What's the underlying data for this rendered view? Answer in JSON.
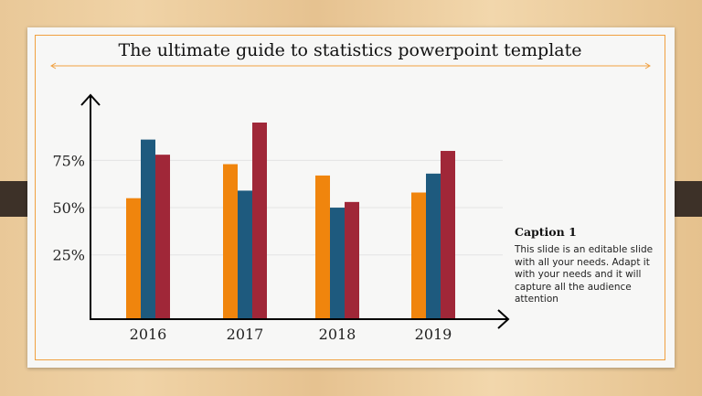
{
  "title": "The ultimate guide to statistics powerpoint template",
  "caption": {
    "title": "Caption 1",
    "body": "This slide is an editable slide with all your needs. Adapt it with your needs and it will capture all the audience attention"
  },
  "chart_data": {
    "type": "bar",
    "categories": [
      "2016",
      "2017",
      "2018",
      "2019"
    ],
    "series": [
      {
        "values": [
          55,
          73,
          67,
          58
        ],
        "color": "#f0850d"
      },
      {
        "values": [
          86,
          59,
          50,
          68
        ],
        "color": "#1e5a7e"
      },
      {
        "values": [
          78,
          95,
          53,
          80
        ],
        "color": "#a02738"
      }
    ],
    "yticks": [
      "25%",
      "50%",
      "75%"
    ],
    "ytick_values": [
      25,
      50,
      75
    ],
    "ylim": [
      -8.5,
      110
    ],
    "grid": true,
    "legend": "none"
  },
  "colors": {
    "accent": "#f0a040",
    "tab": "#3d3128"
  }
}
